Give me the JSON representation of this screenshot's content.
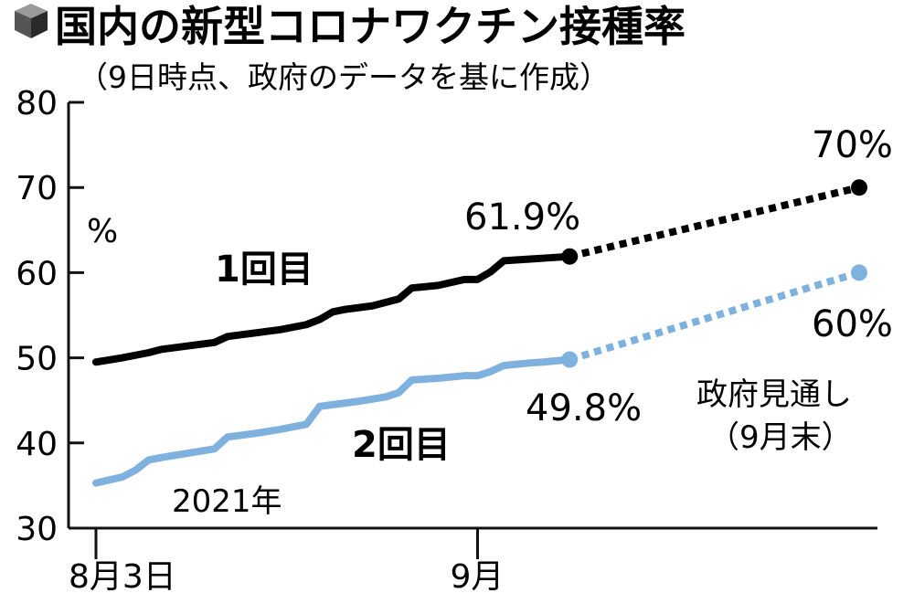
{
  "header": {
    "icon": "cube-icon",
    "title": "国内の新型コロナワクチン接種率",
    "subtitle": "（9日時点、政府のデータを基に作成）"
  },
  "chart_data": {
    "type": "line",
    "title": "国内の新型コロナワクチン接種率",
    "subtitle": "（9日時点、政府のデータを基に作成）",
    "unit": "%",
    "ylim": [
      30,
      80
    ],
    "yticks": [
      30,
      40,
      50,
      60,
      70,
      80
    ],
    "xlim": [
      0,
      58
    ],
    "x_ticks": [
      {
        "x": 0,
        "label": "8月3日"
      },
      {
        "x": 29,
        "label": "9月"
      }
    ],
    "year_label": "2021年",
    "series": [
      {
        "name": "1回目",
        "color": "#000000",
        "points": [
          [
            0,
            49.5
          ],
          [
            2,
            50.0
          ],
          [
            4,
            50.6
          ],
          [
            5,
            51.0
          ],
          [
            7,
            51.4
          ],
          [
            8,
            51.6
          ],
          [
            9,
            51.8
          ],
          [
            10,
            52.5
          ],
          [
            12,
            52.9
          ],
          [
            13,
            53.1
          ],
          [
            14,
            53.3
          ],
          [
            16,
            53.9
          ],
          [
            17,
            54.5
          ],
          [
            18,
            55.4
          ],
          [
            19,
            55.7
          ],
          [
            21,
            56.1
          ],
          [
            22,
            56.5
          ],
          [
            23,
            56.9
          ],
          [
            24,
            58.2
          ],
          [
            26,
            58.5
          ],
          [
            28,
            59.2
          ],
          [
            29,
            59.2
          ],
          [
            30,
            60.1
          ],
          [
            31,
            61.4
          ],
          [
            33,
            61.6
          ],
          [
            34,
            61.7
          ],
          [
            36,
            61.9
          ]
        ],
        "end_label": "61.9%",
        "projection": {
          "points": [
            [
              36,
              61.9
            ],
            [
              58,
              70
            ]
          ],
          "label": "70%"
        }
      },
      {
        "name": "2回目",
        "color": "#7fb1de",
        "points": [
          [
            0,
            35.3
          ],
          [
            2,
            36.0
          ],
          [
            3,
            36.8
          ],
          [
            4,
            38.0
          ],
          [
            5,
            38.3
          ],
          [
            7,
            38.8
          ],
          [
            9,
            39.3
          ],
          [
            10,
            40.7
          ],
          [
            12,
            41.1
          ],
          [
            14,
            41.6
          ],
          [
            16,
            42.2
          ],
          [
            17,
            44.3
          ],
          [
            18,
            44.5
          ],
          [
            20,
            44.9
          ],
          [
            22,
            45.4
          ],
          [
            23,
            45.9
          ],
          [
            24,
            47.4
          ],
          [
            26,
            47.6
          ],
          [
            28,
            47.9
          ],
          [
            29,
            47.9
          ],
          [
            30,
            48.4
          ],
          [
            31,
            49.1
          ],
          [
            33,
            49.4
          ],
          [
            34,
            49.5
          ],
          [
            36,
            49.8
          ]
        ],
        "end_label": "49.8%",
        "projection": {
          "points": [
            [
              36,
              49.8
            ],
            [
              58,
              60
            ]
          ],
          "label": "60%"
        }
      }
    ],
    "projection_note": [
      "政府見通し",
      "（9月末）"
    ],
    "grid": false
  }
}
